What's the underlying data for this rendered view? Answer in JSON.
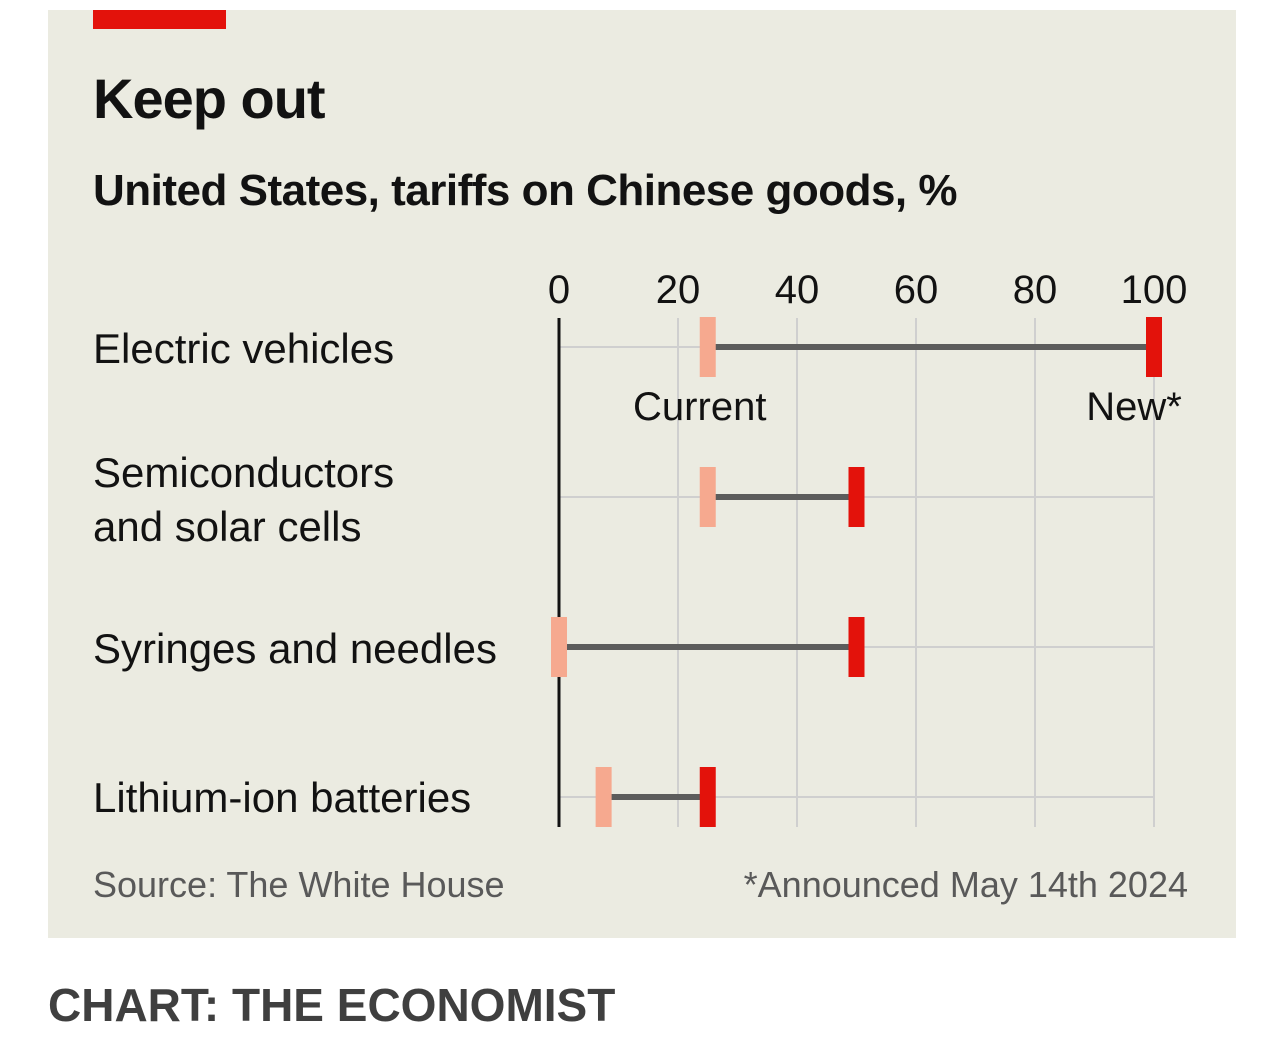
{
  "chart_data": {
    "type": "dumbbell",
    "title": "Keep out",
    "subtitle": "United States, tariffs on Chinese goods, %",
    "categories": [
      "Electric vehicles",
      "Semiconductors and solar cells",
      "Syringes and needles",
      "Lithium-ion batteries"
    ],
    "category_lines": [
      [
        "Electric vehicles"
      ],
      [
        "Semiconductors",
        "and solar cells"
      ],
      [
        "Syringes and needles"
      ],
      [
        "Lithium-ion batteries"
      ]
    ],
    "series": [
      {
        "name": "Current",
        "values": [
          25,
          25,
          0,
          7.5
        ],
        "color": "#f6a98f"
      },
      {
        "name": "New*",
        "values": [
          100,
          50,
          50,
          25
        ],
        "color": "#e3120b"
      }
    ],
    "xlim": [
      0,
      100
    ],
    "xticks": [
      0,
      20,
      40,
      60,
      80,
      100
    ],
    "grid": true,
    "source": "Source: The White House",
    "footnote": "*Announced May 14th 2024"
  },
  "credit": "CHART: THE ECONOMIST",
  "colors": {
    "background": "#ebebe1",
    "accent": "#e3120b",
    "connector": "#5c5c5c",
    "grid": "#cfcfcf"
  }
}
